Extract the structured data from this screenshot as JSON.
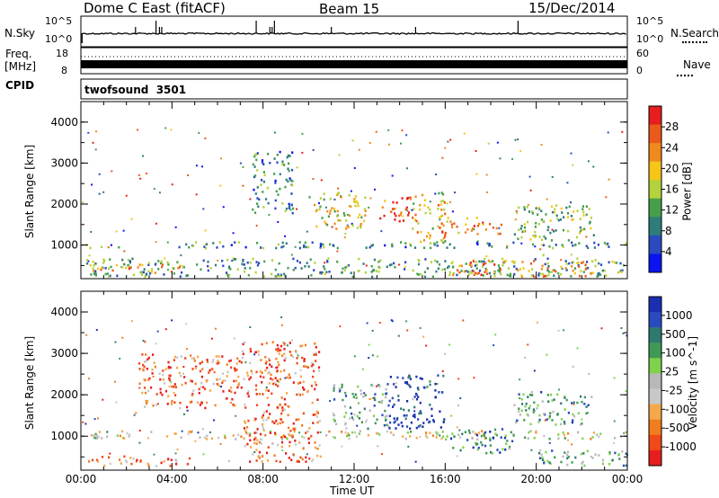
{
  "header": {
    "title": "Dome C East (fitACF)",
    "beam": "Beam 15",
    "date": "15/Dec/2014"
  },
  "top_panels": {
    "nsky_label": "N.Sky",
    "nsky_ticks": [
      "10^5",
      "10^0"
    ],
    "nsearch_label": "N.Search",
    "nsearch_ticks": [
      "10^5",
      "10^0"
    ],
    "freq_label": "Freq.",
    "freq_unit": "[MHz]",
    "freq_ticks": [
      "18",
      "8"
    ],
    "nave_label": "Nave",
    "nave_ticks": [
      "60",
      "0"
    ],
    "cpid_label": "CPID",
    "cpid_value": "twofsound  3501"
  },
  "colors": {
    "power_scale": [
      "#0a14f0",
      "#2a4bbf",
      "#2f7d7a",
      "#46a04b",
      "#b3d23b",
      "#f5c518",
      "#f08a1e",
      "#ea5a1a",
      "#e61e1e"
    ],
    "velocity_scale": [
      "#e61e1e",
      "#ef4a18",
      "#f07d1e",
      "#f5a84a",
      "#c8c8c8",
      "#b8b8b8",
      "#7ed34a",
      "#3f9a55",
      "#2f7a6e",
      "#2a4bbf",
      "#1a2fb0"
    ]
  },
  "chart_data": [
    {
      "type": "heatmap",
      "name": "power-panel",
      "ylabel": "Slant Range [km]",
      "xlabel": "Time UT",
      "ylim": [
        180,
        4500
      ],
      "yticks": [
        "1000",
        "2000",
        "3000",
        "4000"
      ],
      "xticks": [
        "00:00",
        "04:00",
        "08:00",
        "12:00",
        "16:00",
        "20:00",
        "00:00"
      ],
      "colorbar": {
        "label": "Power [dB]",
        "ticks": [
          "28",
          "24",
          "20",
          "16",
          "12",
          "8",
          "4"
        ],
        "range": [
          0,
          30
        ]
      },
      "regions": [
        {
          "t0": 0.0,
          "t1": 24.0,
          "r0": 950,
          "r1": 1100,
          "level": 0.3
        },
        {
          "t0": 0.2,
          "t1": 24.0,
          "r0": 250,
          "r1": 700,
          "level": 0.35
        },
        {
          "t0": 0.5,
          "t1": 4.5,
          "r0": 350,
          "r1": 550,
          "level": 0.7
        },
        {
          "t0": 7.5,
          "t1": 9.3,
          "r0": 1800,
          "r1": 3300,
          "level": 0.3
        },
        {
          "t0": 10.0,
          "t1": 12.5,
          "r0": 1400,
          "r1": 2300,
          "level": 0.55
        },
        {
          "t0": 13.0,
          "t1": 14.5,
          "r0": 1600,
          "r1": 2200,
          "level": 0.85
        },
        {
          "t0": 14.5,
          "t1": 16.0,
          "r0": 1100,
          "r1": 2300,
          "level": 0.6
        },
        {
          "t0": 15.8,
          "t1": 18.5,
          "r0": 1300,
          "r1": 1700,
          "level": 0.75
        },
        {
          "t0": 16.0,
          "t1": 22.5,
          "r0": 250,
          "r1": 650,
          "level": 0.7
        },
        {
          "t0": 19.0,
          "t1": 22.5,
          "r0": 1100,
          "r1": 2000,
          "level": 0.45
        }
      ]
    },
    {
      "type": "heatmap",
      "name": "velocity-panel",
      "ylabel": "Slant Range [km]",
      "xlabel": "Time UT",
      "ylim": [
        180,
        4500
      ],
      "yticks": [
        "1000",
        "2000",
        "3000",
        "4000"
      ],
      "xticks": [
        "00:00",
        "04:00",
        "08:00",
        "12:00",
        "16:00",
        "20:00",
        "00:00"
      ],
      "colorbar": {
        "label": "Velocity [m s^-1]",
        "ticks": [
          "1000",
          "500",
          "100",
          "25",
          "-25",
          "-100",
          "-500",
          "-1000"
        ],
        "range": [
          -1000,
          1000
        ]
      },
      "regions": [
        {
          "t0": 0.0,
          "t1": 24.0,
          "r0": 950,
          "r1": 1150,
          "level": 0.45
        },
        {
          "t0": 0.3,
          "t1": 5.0,
          "r0": 300,
          "r1": 550,
          "level": 0.25
        },
        {
          "t0": 2.5,
          "t1": 7.0,
          "r0": 1700,
          "r1": 3000,
          "level": 0.2
        },
        {
          "t0": 7.0,
          "t1": 10.5,
          "r0": 400,
          "r1": 3300,
          "level": 0.2
        },
        {
          "t0": 11.0,
          "t1": 13.5,
          "r0": 1200,
          "r1": 2300,
          "level": 0.65
        },
        {
          "t0": 13.5,
          "t1": 16.0,
          "r0": 1200,
          "r1": 2500,
          "level": 0.92
        },
        {
          "t0": 16.0,
          "t1": 19.0,
          "r0": 600,
          "r1": 1200,
          "level": 0.75
        },
        {
          "t0": 19.0,
          "t1": 22.5,
          "r0": 1300,
          "r1": 2100,
          "level": 0.7
        },
        {
          "t0": 20.0,
          "t1": 24.0,
          "r0": 300,
          "r1": 700,
          "level": 0.68
        }
      ]
    }
  ]
}
